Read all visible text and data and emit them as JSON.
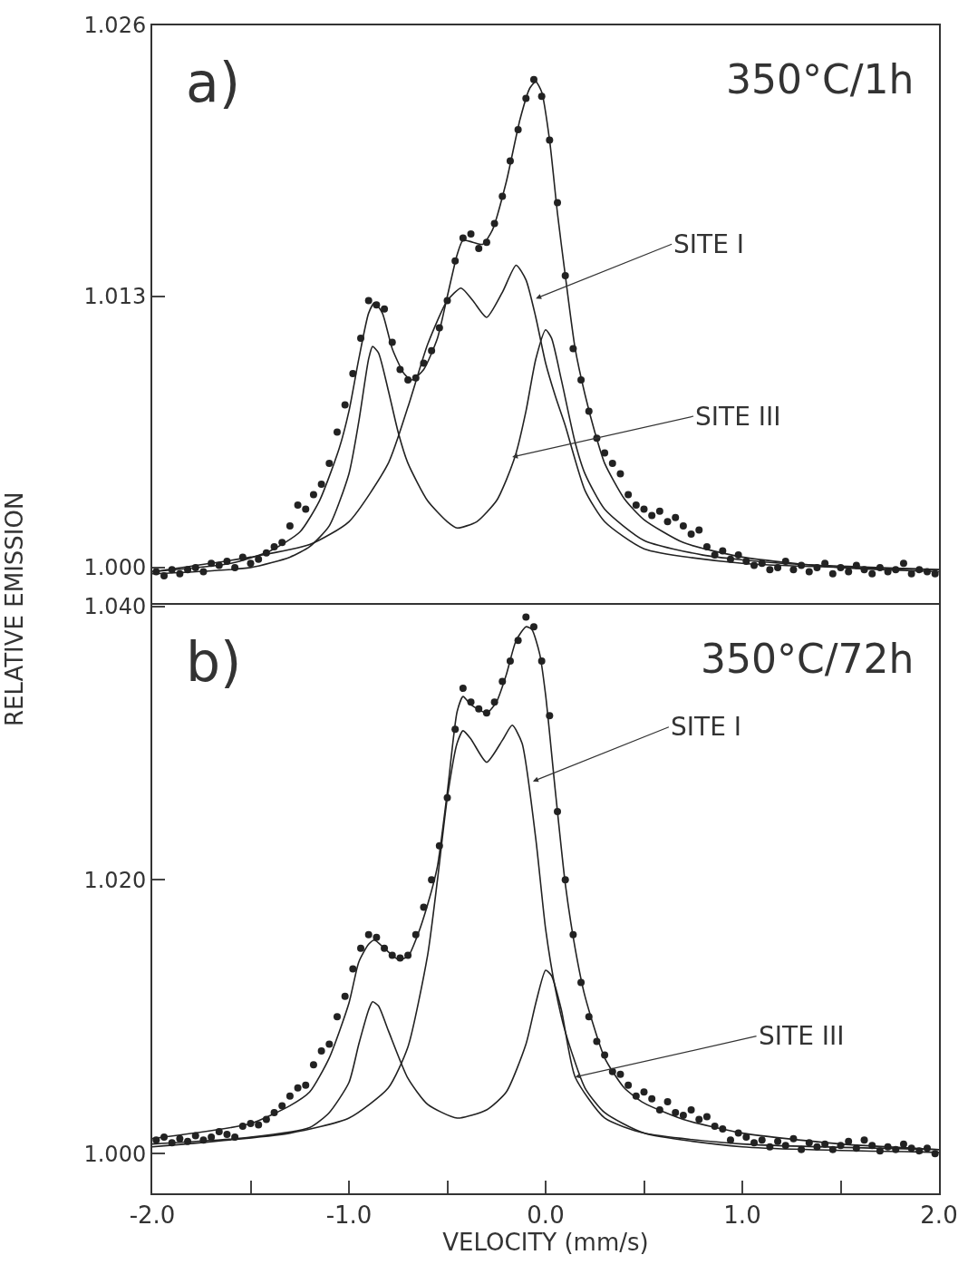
{
  "chart_data": [
    {
      "type": "line",
      "ylabel": "RELATIVE EMISSION",
      "xlim": [
        -2.0,
        2.0
      ],
      "ylim": [
        0.9983,
        1.026
      ],
      "tick_labels": "y",
      "yticks": [
        {
          "value": 1.0,
          "label": "1.000"
        },
        {
          "value": 1.013,
          "label": "1.013"
        },
        {
          "value": 1.026,
          "label": "1.026"
        }
      ],
      "annotations": [
        "a)",
        "350°C/1h",
        {
          "text": "SITE I",
          "x": -0.05,
          "y": 1.0129
        },
        {
          "text": "SITE III",
          "x": -0.17,
          "y": 1.0053
        }
      ],
      "series": [
        {
          "type": "scatter",
          "marker": "circle",
          "color": "#222222",
          "x": [
            -1.98,
            -1.94,
            -1.9,
            -1.86,
            -1.82,
            -1.78,
            -1.74,
            -1.7,
            -1.66,
            -1.62,
            -1.58,
            -1.54,
            -1.5,
            -1.46,
            -1.42,
            -1.38,
            -1.34,
            -1.3,
            -1.26,
            -1.22,
            -1.18,
            -1.14,
            -1.1,
            -1.06,
            -1.02,
            -0.98,
            -0.94,
            -0.9,
            -0.86,
            -0.82,
            -0.78,
            -0.74,
            -0.7,
            -0.66,
            -0.62,
            -0.58,
            -0.54,
            -0.5,
            -0.46,
            -0.42,
            -0.38,
            -0.34,
            -0.3,
            -0.26,
            -0.22,
            -0.18,
            -0.14,
            -0.1,
            -0.06,
            -0.02,
            0.02,
            0.06,
            0.1,
            0.14,
            0.18,
            0.22,
            0.26,
            0.3,
            0.34,
            0.38,
            0.42,
            0.46,
            0.5,
            0.54,
            0.58,
            0.62,
            0.66,
            0.7,
            0.74,
            0.78,
            0.82,
            0.86,
            0.9,
            0.94,
            0.98,
            1.02,
            1.06,
            1.1,
            1.14,
            1.18,
            1.22,
            1.26,
            1.3,
            1.34,
            1.38,
            1.42,
            1.46,
            1.5,
            1.54,
            1.58,
            1.62,
            1.66,
            1.7,
            1.74,
            1.78,
            1.82,
            1.86,
            1.9,
            1.94,
            1.98
          ],
          "values": [
            0.9998,
            0.9996,
            0.9999,
            0.9997,
            0.9999,
            1.0,
            0.9998,
            1.0002,
            1.0001,
            1.0003,
            1.0,
            1.0005,
            1.0002,
            1.0004,
            1.0007,
            1.001,
            1.0012,
            1.002,
            1.003,
            1.0028,
            1.0035,
            1.004,
            1.005,
            1.0065,
            1.0078,
            1.0093,
            1.011,
            1.0128,
            1.0126,
            1.0124,
            1.0108,
            1.0095,
            1.009,
            1.0091,
            1.0098,
            1.0104,
            1.0115,
            1.0128,
            1.0147,
            1.0158,
            1.016,
            1.0153,
            1.0156,
            1.0165,
            1.0178,
            1.0195,
            1.021,
            1.0225,
            1.0234,
            1.0226,
            1.0205,
            1.0175,
            1.014,
            1.0105,
            1.009,
            1.0075,
            1.0062,
            1.0055,
            1.005,
            1.0045,
            1.0035,
            1.003,
            1.0028,
            1.0025,
            1.0027,
            1.0022,
            1.0024,
            1.002,
            1.0016,
            1.0018,
            1.001,
            1.0006,
            1.0008,
            1.0004,
            1.0006,
            1.0003,
            1.0001,
            1.0002,
            0.9999,
            1.0,
            1.0003,
            0.9999,
            1.0001,
            0.9998,
            1.0,
            1.0002,
            0.9997,
            1.0,
            0.9998,
            1.0001,
            0.9999,
            0.9997,
            1.0,
            0.9998,
            0.9999,
            1.0002,
            0.9997,
            0.9999,
            0.9998,
            0.9997
          ]
        },
        {
          "marker": "none",
          "line_style": "solid",
          "color": "#222222",
          "x": [
            -2.0,
            -1.6,
            -1.4,
            -1.25,
            -1.15,
            -1.05,
            -1.0,
            -0.95,
            -0.9,
            -0.87,
            -0.83,
            -0.78,
            -0.72,
            -0.68,
            -0.62,
            -0.55,
            -0.5,
            -0.45,
            -0.42,
            -0.37,
            -0.32,
            -0.27,
            -0.2,
            -0.13,
            -0.08,
            -0.05,
            -0.02,
            0.02,
            0.06,
            0.1,
            0.15,
            0.2,
            0.25,
            0.3,
            0.4,
            0.5,
            0.7,
            1.0,
            1.5,
            2.0
          ],
          "values": [
            0.9998,
            1.0002,
            1.0008,
            1.0017,
            1.0032,
            1.0057,
            1.0075,
            1.01,
            1.0122,
            1.0127,
            1.0122,
            1.0105,
            1.0093,
            1.009,
            1.0095,
            1.011,
            1.013,
            1.015,
            1.0157,
            1.0156,
            1.0155,
            1.0162,
            1.0185,
            1.0215,
            1.023,
            1.0233,
            1.0228,
            1.0205,
            1.017,
            1.014,
            1.0105,
            1.0083,
            1.0065,
            1.005,
            1.0033,
            1.0023,
            1.0012,
            1.0005,
            1.0,
            0.9998
          ]
        },
        {
          "marker": "none",
          "line_style": "solid",
          "color": "#222222",
          "x": [
            -2.0,
            -1.5,
            -1.2,
            -1.0,
            -0.8,
            -0.7,
            -0.6,
            -0.5,
            -0.43,
            -0.37,
            -0.3,
            -0.22,
            -0.15,
            -0.1,
            -0.05,
            0.0,
            0.05,
            0.1,
            0.2,
            0.3,
            0.5,
            1.0,
            2.0
          ],
          "values": [
            0.9998,
            1.0005,
            1.0011,
            1.0022,
            1.005,
            1.0077,
            1.0107,
            1.0128,
            1.0134,
            1.0128,
            1.012,
            1.0132,
            1.0145,
            1.0138,
            1.012,
            1.0098,
            1.0082,
            1.0068,
            1.0037,
            1.0022,
            1.0009,
            1.0002,
            0.9999
          ]
        },
        {
          "marker": "none",
          "line_style": "solid",
          "color": "#222222",
          "x": [
            -2.0,
            -1.5,
            -1.3,
            -1.2,
            -1.1,
            -1.0,
            -0.95,
            -0.9,
            -0.88,
            -0.85,
            -0.8,
            -0.75,
            -0.7,
            -0.6,
            -0.5,
            -0.45,
            -0.35,
            -0.25,
            -0.2,
            -0.15,
            -0.1,
            -0.05,
            0.0,
            0.03,
            0.08,
            0.15,
            0.2,
            0.3,
            0.5,
            0.8,
            1.2,
            2.0
          ],
          "values": [
            0.9997,
            1.0,
            1.0005,
            1.001,
            1.002,
            1.0045,
            1.007,
            1.01,
            1.0106,
            1.0103,
            1.0085,
            1.0065,
            1.005,
            1.0032,
            1.0022,
            1.0019,
            1.0022,
            1.0032,
            1.0042,
            1.0055,
            1.0075,
            1.01,
            1.0114,
            1.011,
            1.009,
            1.006,
            1.0045,
            1.0028,
            1.0013,
            1.0006,
            1.0002,
            0.9999
          ]
        }
      ]
    },
    {
      "type": "line",
      "xlabel": "VELOCITY (mm/s)",
      "xlim": [
        -2.0,
        2.0
      ],
      "ylim": [
        0.9971,
        1.0401
      ],
      "xticks": [
        {
          "value": -2.0,
          "label": "-2.0"
        },
        {
          "value": -1.5,
          "label": null
        },
        {
          "value": -1.0,
          "label": "-1.0"
        },
        {
          "value": -0.5,
          "label": null
        },
        {
          "value": 0.0,
          "label": "0.0"
        },
        {
          "value": 0.5,
          "label": null
        },
        {
          "value": 1.0,
          "label": "1.0"
        },
        {
          "value": 1.5,
          "label": null
        },
        {
          "value": 2.0,
          "label": "2.0"
        }
      ],
      "yticks": [
        {
          "value": 1.0,
          "label": "1.000"
        },
        {
          "value": 1.02,
          "label": "1.020"
        },
        {
          "value": 1.04,
          "label": "1.040"
        }
      ],
      "annotations": [
        "b)",
        "350°C/72h",
        {
          "text": "SITE I",
          "x": -0.065,
          "y": 1.0272
        },
        {
          "text": "SITE III",
          "x": 0.15,
          "y": 1.0056
        }
      ],
      "series": [
        {
          "type": "scatter",
          "marker": "circle",
          "color": "#222222",
          "x": [
            -1.98,
            -1.94,
            -1.9,
            -1.86,
            -1.82,
            -1.78,
            -1.74,
            -1.7,
            -1.66,
            -1.62,
            -1.58,
            -1.54,
            -1.5,
            -1.46,
            -1.42,
            -1.38,
            -1.34,
            -1.3,
            -1.26,
            -1.22,
            -1.18,
            -1.14,
            -1.1,
            -1.06,
            -1.02,
            -0.98,
            -0.94,
            -0.9,
            -0.86,
            -0.82,
            -0.78,
            -0.74,
            -0.7,
            -0.66,
            -0.62,
            -0.58,
            -0.54,
            -0.5,
            -0.46,
            -0.42,
            -0.38,
            -0.34,
            -0.3,
            -0.26,
            -0.22,
            -0.18,
            -0.14,
            -0.1,
            -0.06,
            -0.02,
            0.02,
            0.06,
            0.1,
            0.14,
            0.18,
            0.22,
            0.26,
            0.3,
            0.34,
            0.38,
            0.42,
            0.46,
            0.5,
            0.54,
            0.58,
            0.62,
            0.66,
            0.7,
            0.74,
            0.78,
            0.82,
            0.86,
            0.9,
            0.94,
            0.98,
            1.02,
            1.06,
            1.1,
            1.14,
            1.18,
            1.22,
            1.26,
            1.3,
            1.34,
            1.38,
            1.42,
            1.46,
            1.5,
            1.54,
            1.58,
            1.62,
            1.66,
            1.7,
            1.74,
            1.78,
            1.82,
            1.86,
            1.9,
            1.94,
            1.98
          ],
          "values": [
            1.001,
            1.0012,
            1.0008,
            1.0011,
            1.0009,
            1.0013,
            1.001,
            1.0012,
            1.0016,
            1.0014,
            1.0012,
            1.002,
            1.0022,
            1.0021,
            1.0025,
            1.003,
            1.0035,
            1.0042,
            1.0048,
            1.005,
            1.0065,
            1.0075,
            1.008,
            1.01,
            1.0115,
            1.0135,
            1.015,
            1.016,
            1.0158,
            1.015,
            1.0145,
            1.0143,
            1.0145,
            1.016,
            1.018,
            1.02,
            1.0225,
            1.026,
            1.031,
            1.034,
            1.033,
            1.0325,
            1.0322,
            1.033,
            1.0345,
            1.036,
            1.0375,
            1.0392,
            1.0385,
            1.036,
            1.032,
            1.025,
            1.02,
            1.016,
            1.0125,
            1.01,
            1.0082,
            1.0072,
            1.006,
            1.0058,
            1.005,
            1.0042,
            1.0045,
            1.004,
            1.0032,
            1.0038,
            1.003,
            1.0028,
            1.0032,
            1.0025,
            1.0027,
            1.002,
            1.0018,
            1.001,
            1.0015,
            1.0012,
            1.0008,
            1.001,
            1.0005,
            1.0009,
            1.0006,
            1.0011,
            1.0003,
            1.0008,
            1.0005,
            1.0007,
            1.0003,
            1.0006,
            1.0009,
            1.0004,
            1.001,
            1.0006,
            1.0002,
            1.0005,
            1.0003,
            1.0007,
            1.0004,
            1.0002,
            1.0004,
            1.0
          ]
        },
        {
          "marker": "none",
          "line_style": "solid",
          "color": "#222222",
          "x": [
            -2.0,
            -1.5,
            -1.3,
            -1.2,
            -1.1,
            -1.0,
            -0.95,
            -0.9,
            -0.87,
            -0.82,
            -0.75,
            -0.7,
            -0.65,
            -0.6,
            -0.55,
            -0.5,
            -0.45,
            -0.42,
            -0.38,
            -0.3,
            -0.25,
            -0.2,
            -0.15,
            -0.1,
            -0.07,
            -0.03,
            0.0,
            0.05,
            0.1,
            0.15,
            0.2,
            0.3,
            0.4,
            0.5,
            0.7,
            1.0,
            1.5,
            2.0
          ],
          "values": [
            1.0011,
            1.0022,
            1.0035,
            1.0045,
            1.007,
            1.011,
            1.014,
            1.0153,
            1.0156,
            1.015,
            1.0142,
            1.0144,
            1.016,
            1.0182,
            1.021,
            1.0264,
            1.0323,
            1.0334,
            1.0328,
            1.0322,
            1.033,
            1.035,
            1.0375,
            1.0385,
            1.0383,
            1.0365,
            1.0335,
            1.0264,
            1.0197,
            1.015,
            1.0115,
            1.007,
            1.0048,
            1.0037,
            1.0025,
            1.0015,
            1.0007,
            1.0003
          ]
        },
        {
          "marker": "none",
          "line_style": "solid",
          "color": "#222222",
          "x": [
            -2.0,
            -1.3,
            -1.0,
            -0.8,
            -0.7,
            -0.6,
            -0.55,
            -0.5,
            -0.45,
            -0.42,
            -0.38,
            -0.3,
            -0.22,
            -0.17,
            -0.12,
            -0.05,
            0.0,
            0.05,
            0.1,
            0.2,
            0.3,
            0.5,
            1.0,
            2.0
          ],
          "values": [
            1.0005,
            1.0015,
            1.0026,
            1.0048,
            1.0078,
            1.0145,
            1.02,
            1.026,
            1.03,
            1.0309,
            1.0303,
            1.0286,
            1.0302,
            1.0313,
            1.03,
            1.023,
            1.0164,
            1.012,
            1.0089,
            1.0048,
            1.003,
            1.0015,
            1.0005,
            1.0001
          ]
        },
        {
          "marker": "none",
          "line_style": "solid",
          "color": "#222222",
          "x": [
            -2.0,
            -1.5,
            -1.2,
            -1.1,
            -1.0,
            -0.95,
            -0.9,
            -0.88,
            -0.85,
            -0.8,
            -0.7,
            -0.6,
            -0.45,
            -0.3,
            -0.2,
            -0.1,
            -0.05,
            0.0,
            0.03,
            0.08,
            0.15,
            0.3,
            0.5,
            1.0,
            2.0
          ],
          "values": [
            1.0007,
            1.0012,
            1.0019,
            1.003,
            1.0052,
            1.008,
            1.0105,
            1.0111,
            1.0108,
            1.009,
            1.0055,
            1.0036,
            1.0026,
            1.0032,
            1.0045,
            1.008,
            1.011,
            1.0134,
            1.013,
            1.0105,
            1.0056,
            1.0026,
            1.0015,
            1.0007,
            1.0003
          ]
        }
      ]
    }
  ]
}
